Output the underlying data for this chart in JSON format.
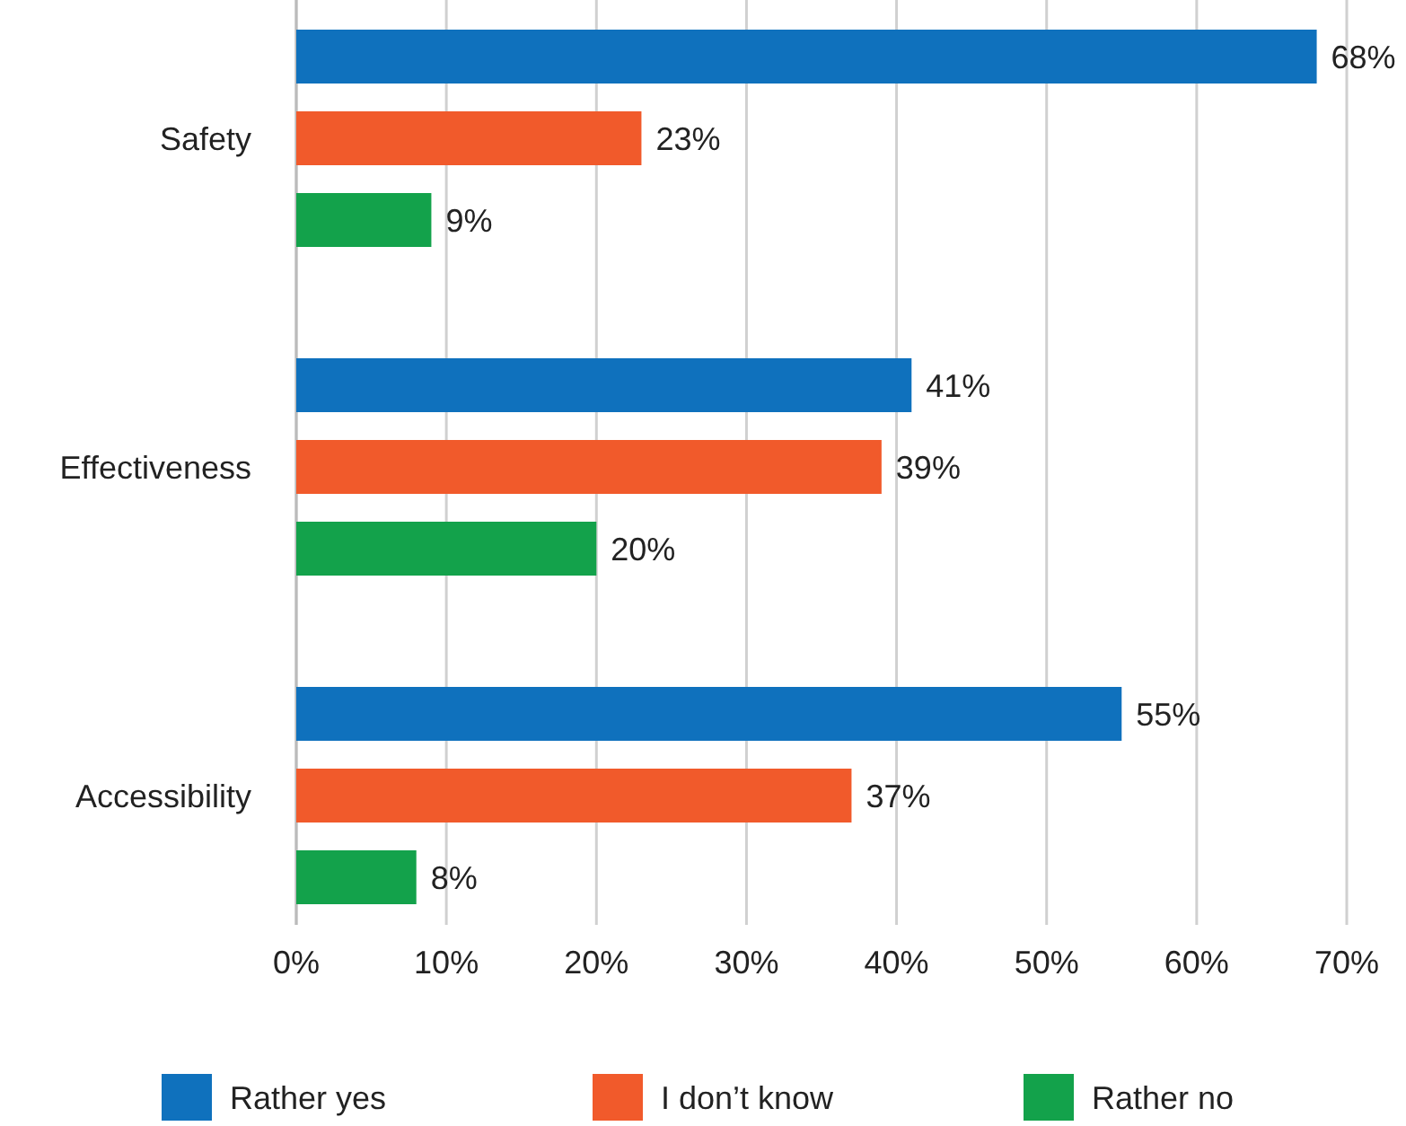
{
  "chart_data": {
    "type": "bar",
    "orientation": "horizontal",
    "categories": [
      "Safety",
      "Effectiveness",
      "Accessibility"
    ],
    "series": [
      {
        "name": "Rather yes",
        "color": "#0f71bd",
        "values": [
          68,
          41,
          55
        ],
        "value_labels": [
          "68%",
          "41%",
          "55%"
        ]
      },
      {
        "name": "I don’t know",
        "color": "#f15a2b",
        "values": [
          23,
          39,
          37
        ],
        "value_labels": [
          "23%",
          "39%",
          "37%"
        ]
      },
      {
        "name": "Rather no",
        "color": "#13a24b",
        "values": [
          9,
          20,
          8
        ],
        "value_labels": [
          "9%",
          "20%",
          "8%"
        ]
      }
    ],
    "xlim": [
      0,
      70
    ],
    "xticks": [
      {
        "value": 0,
        "label": "0%"
      },
      {
        "value": 10,
        "label": "10%"
      },
      {
        "value": 20,
        "label": "20%"
      },
      {
        "value": 30,
        "label": "30%"
      },
      {
        "value": 40,
        "label": "40%"
      },
      {
        "value": 50,
        "label": "50%"
      },
      {
        "value": 60,
        "label": "60%"
      },
      {
        "value": 70,
        "label": "70%"
      }
    ],
    "grid": "x",
    "legend": "bottom"
  }
}
